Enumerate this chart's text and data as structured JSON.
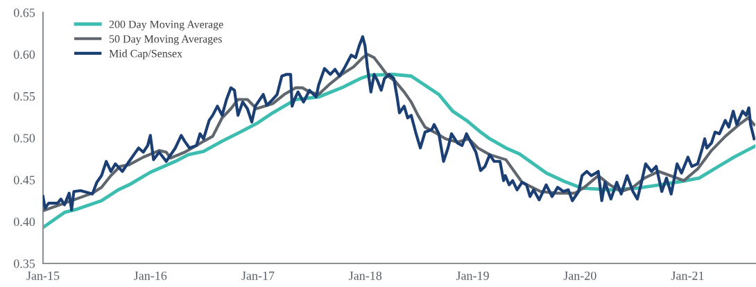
{
  "chart_data": {
    "type": "line",
    "xlim": [
      "2015-01-01",
      "2021-08-19"
    ],
    "ylim": [
      0.35,
      0.65
    ],
    "xticks": [
      {
        "value": "2015-01",
        "label": "Jan-15"
      },
      {
        "value": "2016-01",
        "label": "Jan-16"
      },
      {
        "value": "2017-01",
        "label": "Jan-17"
      },
      {
        "value": "2018-01",
        "label": "Jan-18"
      },
      {
        "value": "2019-01",
        "label": "Jan-19"
      },
      {
        "value": "2020-01",
        "label": "Jan-20"
      },
      {
        "value": "2021-01",
        "label": "Jan-21"
      }
    ],
    "yticks": [
      {
        "value": 0.35,
        "label": "0.35"
      },
      {
        "value": 0.4,
        "label": "0.40"
      },
      {
        "value": 0.45,
        "label": "0.45"
      },
      {
        "value": 0.5,
        "label": "0.50"
      },
      {
        "value": 0.55,
        "label": "0.55"
      },
      {
        "value": 0.6,
        "label": "0.60"
      },
      {
        "value": 0.65,
        "label": "0.65"
      }
    ],
    "grid": false,
    "legend": "top left",
    "marker": "none",
    "line_style": "solid",
    "series": [
      {
        "name": "200 Day Moving Average",
        "color": "#3dbdb0",
        "x": [
          "2015-01-01",
          "2015-03-15",
          "2015-04-28",
          "2015-07-19",
          "2015-09-14",
          "2015-10-21",
          "2016-01-01",
          "2016-03-26",
          "2016-05-09",
          "2016-06-30",
          "2016-08-31",
          "2016-11-01",
          "2016-12-31",
          "2017-02-20",
          "2017-05-09",
          "2017-07-26",
          "2017-10-13",
          "2017-12-15",
          "2018-01-16",
          "2018-04-04",
          "2018-06-06",
          "2018-07-23",
          "2018-09-08",
          "2018-10-25",
          "2018-12-11",
          "2019-01-28",
          "2019-02-28",
          "2019-04-24",
          "2019-06-09",
          "2019-09-09",
          "2019-11-09",
          "2020-01-08",
          "2020-04-11",
          "2020-07-14",
          "2020-09-09",
          "2020-12-10",
          "2021-02-09",
          "2021-04-11",
          "2021-06-12",
          "2021-08-17"
        ],
        "values": [
          0.393,
          0.411,
          0.415,
          0.425,
          0.438,
          0.444,
          0.459,
          0.472,
          0.48,
          0.484,
          0.496,
          0.507,
          0.518,
          0.53,
          0.546,
          0.549,
          0.56,
          0.571,
          0.575,
          0.576,
          0.574,
          0.563,
          0.552,
          0.532,
          0.521,
          0.507,
          0.499,
          0.488,
          0.481,
          0.458,
          0.448,
          0.44,
          0.438,
          0.44,
          0.443,
          0.448,
          0.452,
          0.465,
          0.478,
          0.49
        ]
      },
      {
        "name": "50 Day Moving Averages",
        "color": "#5f666d",
        "x": [
          "2015-01-01",
          "2015-03-15",
          "2015-06-18",
          "2015-07-19",
          "2015-08-20",
          "2015-09-20",
          "2015-10-21",
          "2015-12-08",
          "2016-01-31",
          "2016-02-24",
          "2016-03-10",
          "2016-04-27",
          "2016-06-06",
          "2016-06-30",
          "2016-07-31",
          "2016-09-01",
          "2016-10-01",
          "2016-10-25",
          "2016-11-26",
          "2016-12-27",
          "2017-02-20",
          "2017-03-31",
          "2017-05-09",
          "2017-06-01",
          "2017-06-25",
          "2017-07-26",
          "2017-09-04",
          "2017-10-13",
          "2017-11-22",
          "2017-12-23",
          "2018-01-08",
          "2018-01-31",
          "2018-02-24",
          "2018-03-19",
          "2018-04-12",
          "2018-05-13",
          "2018-06-06",
          "2018-06-29",
          "2018-07-23",
          "2018-08-23",
          "2018-10-01",
          "2018-11-10",
          "2018-12-19",
          "2019-01-19",
          "2019-02-28",
          "2019-04-24",
          "2019-06-18",
          "2019-08-19",
          "2019-10-13",
          "2019-12-15",
          "2020-01-16",
          "2020-03-03",
          "2020-04-11",
          "2020-05-20",
          "2020-06-29",
          "2020-08-07",
          "2020-09-24",
          "2020-11-02",
          "2020-12-19",
          "2021-02-04",
          "2021-03-23",
          "2021-05-09",
          "2021-06-25",
          "2021-07-26",
          "2021-08-15"
        ],
        "values": [
          0.413,
          0.422,
          0.434,
          0.441,
          0.455,
          0.466,
          0.468,
          0.477,
          0.485,
          0.483,
          0.476,
          0.483,
          0.491,
          0.496,
          0.502,
          0.524,
          0.535,
          0.546,
          0.546,
          0.535,
          0.541,
          0.552,
          0.56,
          0.56,
          0.555,
          0.552,
          0.565,
          0.576,
          0.585,
          0.596,
          0.6,
          0.596,
          0.585,
          0.574,
          0.568,
          0.555,
          0.543,
          0.527,
          0.513,
          0.507,
          0.499,
          0.495,
          0.499,
          0.488,
          0.48,
          0.474,
          0.447,
          0.436,
          0.434,
          0.434,
          0.441,
          0.455,
          0.444,
          0.436,
          0.441,
          0.452,
          0.46,
          0.455,
          0.449,
          0.463,
          0.485,
          0.502,
          0.516,
          0.524,
          0.516
        ]
      },
      {
        "name": "Mid Cap/Sensex",
        "color": "#1b3f73",
        "x": [
          "2015-01-01",
          "2015-01-08",
          "2015-01-20",
          "2015-02-20",
          "2015-03-03",
          "2015-03-15",
          "2015-03-31",
          "2015-04-08",
          "2015-04-16",
          "2015-05-09",
          "2015-06-18",
          "2015-07-03",
          "2015-07-19",
          "2015-08-04",
          "2015-08-20",
          "2015-09-04",
          "2015-09-28",
          "2015-10-21",
          "2015-11-06",
          "2015-11-22",
          "2015-12-08",
          "2015-12-23",
          "2016-01-01",
          "2016-01-12",
          "2016-01-31",
          "2016-02-24",
          "2016-03-26",
          "2016-04-15",
          "2016-04-27",
          "2016-05-13",
          "2016-06-06",
          "2016-06-18",
          "2016-06-30",
          "2016-07-19",
          "2016-07-31",
          "2016-08-16",
          "2016-09-01",
          "2016-09-16",
          "2016-10-01",
          "2016-10-13",
          "2016-10-25",
          "2016-11-10",
          "2016-11-26",
          "2016-12-11",
          "2016-12-23",
          "2017-01-19",
          "2017-01-31",
          "2017-02-20",
          "2017-03-07",
          "2017-03-23",
          "2017-04-08",
          "2017-04-22",
          "2017-04-27",
          "2017-05-05",
          "2017-05-17",
          "2017-06-05",
          "2017-06-25",
          "2017-07-18",
          "2017-07-26",
          "2017-08-15",
          "2017-09-04",
          "2017-09-20",
          "2017-10-05",
          "2017-10-21",
          "2017-11-14",
          "2017-11-29",
          "2017-12-11",
          "2017-12-23",
          "2017-12-31",
          "2018-01-08",
          "2018-01-20",
          "2018-01-31",
          "2018-02-12",
          "2018-02-24",
          "2018-03-07",
          "2018-03-23",
          "2018-04-08",
          "2018-04-19",
          "2018-04-27",
          "2018-05-13",
          "2018-05-25",
          "2018-06-06",
          "2018-06-21",
          "2018-07-07",
          "2018-07-23",
          "2018-08-15",
          "2018-08-23",
          "2018-09-08",
          "2018-09-24",
          "2018-10-09",
          "2018-10-21",
          "2018-11-10",
          "2018-11-26",
          "2018-12-11",
          "2018-12-27",
          "2019-01-12",
          "2019-01-28",
          "2019-02-12",
          "2019-02-28",
          "2019-03-15",
          "2019-04-04",
          "2019-04-16",
          "2019-04-22",
          "2019-05-05",
          "2019-05-17",
          "2019-06-01",
          "2019-06-18",
          "2019-07-03",
          "2019-07-15",
          "2019-07-27",
          "2019-08-15",
          "2019-09-08",
          "2019-09-28",
          "2019-10-17",
          "2019-11-06",
          "2019-11-22",
          "2019-12-06",
          "2019-12-27",
          "2020-01-08",
          "2020-01-24",
          "2020-02-08",
          "2020-02-24",
          "2020-03-03",
          "2020-03-15",
          "2020-03-26",
          "2020-04-15",
          "2020-05-05",
          "2020-05-20",
          "2020-06-09",
          "2020-06-29",
          "2020-07-14",
          "2020-07-26",
          "2020-08-11",
          "2020-08-31",
          "2020-09-16",
          "2020-10-05",
          "2020-10-21",
          "2020-11-06",
          "2020-11-26",
          "2020-12-11",
          "2021-01-02",
          "2021-01-15",
          "2021-02-04",
          "2021-02-20",
          "2021-02-28",
          "2021-03-07",
          "2021-03-23",
          "2021-04-04",
          "2021-04-19",
          "2021-05-09",
          "2021-05-21",
          "2021-06-05",
          "2021-06-17",
          "2021-07-07",
          "2021-07-19",
          "2021-07-28",
          "2021-08-03",
          "2021-08-15"
        ],
        "values": [
          0.43,
          0.416,
          0.422,
          0.422,
          0.427,
          0.42,
          0.434,
          0.414,
          0.436,
          0.437,
          0.433,
          0.447,
          0.455,
          0.472,
          0.46,
          0.469,
          0.46,
          0.472,
          0.48,
          0.488,
          0.483,
          0.491,
          0.503,
          0.474,
          0.483,
          0.472,
          0.488,
          0.503,
          0.496,
          0.488,
          0.491,
          0.505,
          0.499,
          0.521,
          0.527,
          0.538,
          0.527,
          0.546,
          0.56,
          0.557,
          0.527,
          0.543,
          0.535,
          0.519,
          0.538,
          0.552,
          0.539,
          0.546,
          0.552,
          0.574,
          0.576,
          0.576,
          0.538,
          0.546,
          0.555,
          0.543,
          0.557,
          0.549,
          0.563,
          0.583,
          0.576,
          0.582,
          0.574,
          0.583,
          0.599,
          0.596,
          0.61,
          0.621,
          0.61,
          0.585,
          0.555,
          0.576,
          0.568,
          0.557,
          0.571,
          0.576,
          0.571,
          0.549,
          0.53,
          0.538,
          0.524,
          0.527,
          0.507,
          0.488,
          0.507,
          0.51,
          0.516,
          0.505,
          0.472,
          0.488,
          0.505,
          0.494,
          0.491,
          0.505,
          0.494,
          0.483,
          0.461,
          0.466,
          0.48,
          0.472,
          0.472,
          0.449,
          0.455,
          0.444,
          0.449,
          0.438,
          0.447,
          0.444,
          0.43,
          0.438,
          0.426,
          0.444,
          0.43,
          0.441,
          0.436,
          0.438,
          0.425,
          0.436,
          0.455,
          0.46,
          0.455,
          0.458,
          0.46,
          0.425,
          0.447,
          0.427,
          0.447,
          0.433,
          0.455,
          0.436,
          0.427,
          0.444,
          0.469,
          0.46,
          0.466,
          0.436,
          0.452,
          0.433,
          0.469,
          0.458,
          0.477,
          0.466,
          0.469,
          0.488,
          0.499,
          0.488,
          0.494,
          0.507,
          0.505,
          0.521,
          0.513,
          0.532,
          0.516,
          0.532,
          0.527,
          0.536,
          0.516,
          0.499
        ]
      }
    ]
  }
}
